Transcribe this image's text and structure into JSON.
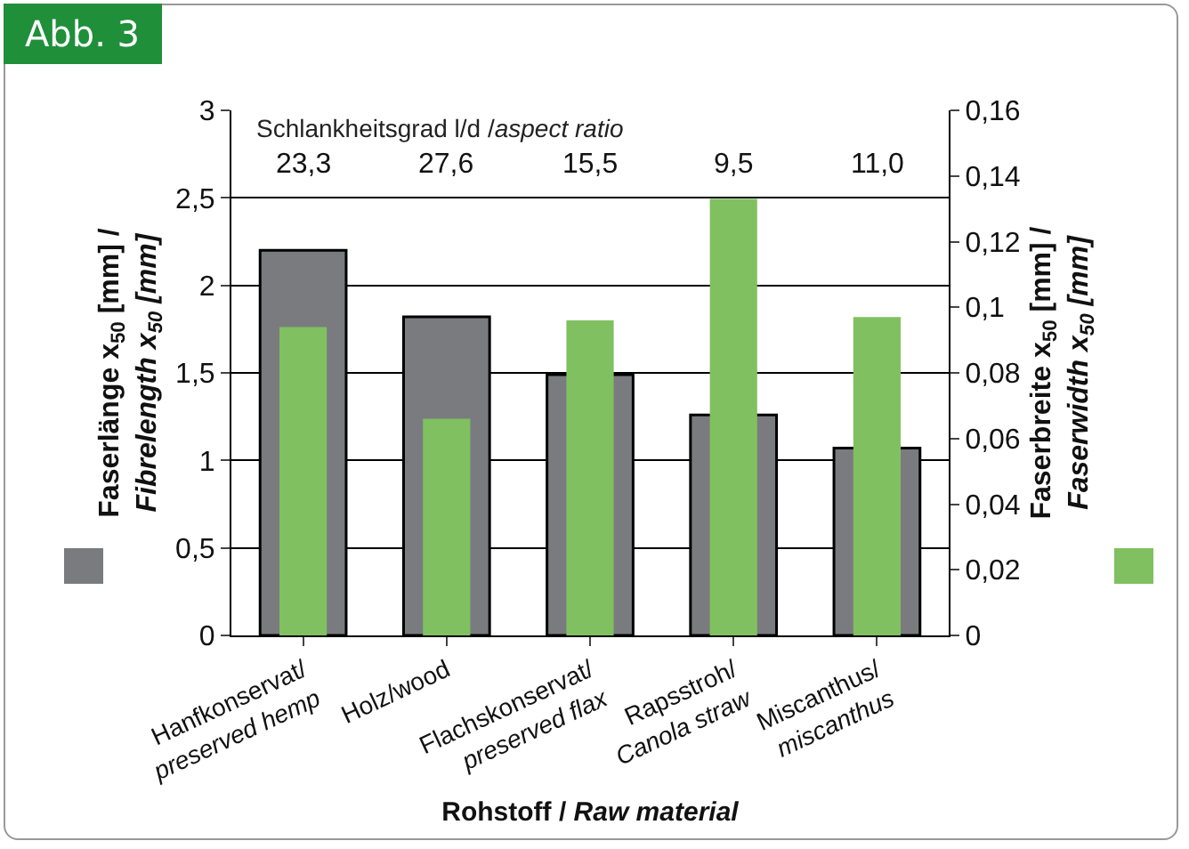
{
  "chart_data": {
    "type": "bar",
    "title": "Abb. 3",
    "categories": [
      "Hanfkonservat/ preserved hemp",
      "Holz/wood",
      "Flachskonservat/ preserved flax",
      "Rapsstroh/ Canola straw",
      "Miscanthus/ miscanthus"
    ],
    "series": [
      {
        "color": "#7a7b7f",
        "values": [
          2.2,
          1.82,
          1.49,
          1.26,
          1.07
        ]
      },
      {
        "color": "#80c060",
        "axis": "y2",
        "values": [
          0.094,
          0.066,
          0.096,
          0.133,
          0.097
        ]
      }
    ],
    "xlabel": "Rohstoff / Raw material",
    "ylabel": "Faserlänge x$_{50}$ [mm] / Fibrelength x$_{50}$ [mm]",
    "y2label": "Faserbreite x$_{50}$ [mm] / Faserwidth x$_{50}$ [mm]",
    "ylim": [
      0,
      3
    ],
    "yticks": [
      {
        "value": 0,
        "label": "0"
      },
      {
        "value": 0.5,
        "label": "0,5"
      },
      {
        "value": 1,
        "label": "1"
      },
      {
        "value": 1.5,
        "label": "1,5"
      },
      {
        "value": 2,
        "label": "2"
      },
      {
        "value": 2.5,
        "label": "2,5"
      },
      {
        "value": 3,
        "label": "3"
      }
    ],
    "y2lim": [
      0,
      0.16
    ],
    "y2ticks": [
      {
        "value": 0,
        "label": "0"
      },
      {
        "value": 0.02,
        "label": "0,02"
      },
      {
        "value": 0.04,
        "label": "0,04"
      },
      {
        "value": 0.06,
        "label": "0,06"
      },
      {
        "value": 0.08,
        "label": "0,08"
      },
      {
        "value": 0.1,
        "label": "0,1"
      },
      {
        "value": 0.12,
        "label": "0,12"
      },
      {
        "value": 0.14,
        "label": "0,14"
      },
      {
        "value": 0.16,
        "label": "0,16"
      }
    ],
    "annotations": [
      "Schlankheitsgrad l/d /aspect ratio",
      "23,3",
      "27,6",
      "15,5",
      "9,5",
      "11,0"
    ],
    "grid": "y"
  }
}
